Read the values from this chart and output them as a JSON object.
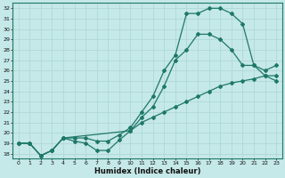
{
  "xlabel": "Humidex (Indice chaleur)",
  "xlim": [
    -0.5,
    23.5
  ],
  "ylim": [
    17.5,
    32.5
  ],
  "xticks": [
    0,
    1,
    2,
    3,
    4,
    5,
    6,
    7,
    8,
    9,
    10,
    11,
    12,
    13,
    14,
    15,
    16,
    17,
    18,
    19,
    20,
    21,
    22,
    23
  ],
  "yticks": [
    18,
    19,
    20,
    21,
    22,
    23,
    24,
    25,
    26,
    27,
    28,
    29,
    30,
    31,
    32
  ],
  "bg_color": "#c5e8e8",
  "grid_color": "#b0d8d8",
  "line_color": "#1e7868",
  "line1_x": [
    0,
    1,
    2,
    3,
    4,
    5,
    6,
    7,
    8,
    9,
    10,
    11,
    12,
    13,
    14,
    15,
    16,
    17,
    18,
    19,
    20,
    21,
    22,
    23
  ],
  "line1_y": [
    19.0,
    19.0,
    17.8,
    18.3,
    19.5,
    19.2,
    19.0,
    18.3,
    18.3,
    19.3,
    20.2,
    21.5,
    22.5,
    24.5,
    27.0,
    28.0,
    29.5,
    29.5,
    29.0,
    28.0,
    26.5,
    26.5,
    26.0,
    26.5
  ],
  "line2_x": [
    0,
    1,
    2,
    3,
    4,
    5,
    6,
    7,
    8,
    9,
    10,
    11,
    12,
    13,
    14,
    15,
    16,
    17,
    18,
    19,
    20,
    21,
    22,
    23
  ],
  "line2_y": [
    19.0,
    19.0,
    17.8,
    18.3,
    19.5,
    19.5,
    19.5,
    19.2,
    19.2,
    19.8,
    20.5,
    22.0,
    23.5,
    26.0,
    27.5,
    31.5,
    31.5,
    32.0,
    32.0,
    31.5,
    30.5,
    26.5,
    25.5,
    25.0
  ],
  "line3_x": [
    0,
    1,
    2,
    3,
    4,
    10,
    11,
    12,
    13,
    14,
    15,
    16,
    17,
    18,
    19,
    20,
    21,
    22,
    23
  ],
  "line3_y": [
    19.0,
    19.0,
    17.8,
    18.3,
    19.5,
    20.2,
    21.0,
    21.5,
    22.0,
    22.5,
    23.0,
    23.5,
    24.0,
    24.5,
    24.8,
    25.0,
    25.2,
    25.5,
    25.5
  ],
  "markersize": 2.0,
  "linewidth": 0.9
}
